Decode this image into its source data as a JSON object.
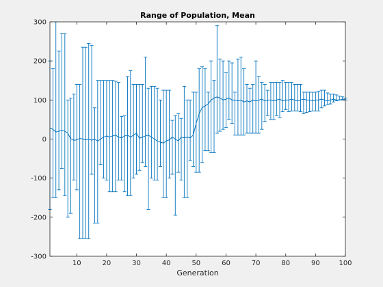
{
  "chart_data": {
    "type": "errorbar",
    "title": "Range of Population, Mean",
    "xlabel": "Generation",
    "ylabel": "",
    "xlim": [
      1,
      100
    ],
    "ylim": [
      -300,
      300
    ],
    "xticks": [
      10,
      20,
      30,
      40,
      50,
      60,
      70,
      80,
      90,
      100
    ],
    "yticks": [
      -300,
      -200,
      -100,
      0,
      100,
      200,
      300
    ],
    "grid": false,
    "line_color": "#0072bd",
    "x": [
      1,
      2,
      3,
      4,
      5,
      6,
      7,
      8,
      9,
      10,
      11,
      12,
      13,
      14,
      15,
      16,
      17,
      18,
      19,
      20,
      21,
      22,
      23,
      24,
      25,
      26,
      27,
      28,
      29,
      30,
      31,
      32,
      33,
      34,
      35,
      36,
      37,
      38,
      39,
      40,
      41,
      42,
      43,
      44,
      45,
      46,
      47,
      48,
      49,
      50,
      51,
      52,
      53,
      54,
      55,
      56,
      57,
      58,
      59,
      60,
      61,
      62,
      63,
      64,
      65,
      66,
      67,
      68,
      69,
      70,
      71,
      72,
      73,
      74,
      75,
      76,
      77,
      78,
      79,
      80,
      81,
      82,
      83,
      84,
      85,
      86,
      87,
      88,
      89,
      90,
      91,
      92,
      93,
      94,
      95,
      96,
      97,
      98,
      99,
      100
    ],
    "mean": [
      28,
      25,
      18,
      20,
      22,
      20,
      15,
      0,
      -3,
      -2,
      2,
      0,
      -2,
      0,
      -3,
      0,
      -5,
      0,
      5,
      8,
      5,
      8,
      10,
      5,
      3,
      8,
      10,
      5,
      10,
      15,
      2,
      5,
      8,
      10,
      5,
      0,
      -5,
      -8,
      -10,
      -5,
      -2,
      5,
      0,
      -5,
      5,
      3,
      5,
      3,
      10,
      40,
      65,
      80,
      85,
      90,
      100,
      105,
      108,
      105,
      100,
      102,
      105,
      100,
      100,
      98,
      100,
      95,
      98,
      95,
      100,
      98,
      100,
      102,
      98,
      100,
      100,
      98,
      100,
      102,
      98,
      100,
      100,
      102,
      100,
      98,
      100,
      102,
      100,
      100,
      98,
      100,
      100,
      102,
      100,
      98,
      100,
      102,
      100,
      100,
      102,
      102
    ],
    "upper": [
      200,
      180,
      300,
      225,
      270,
      270,
      100,
      105,
      115,
      140,
      140,
      235,
      235,
      245,
      240,
      80,
      150,
      150,
      150,
      150,
      150,
      150,
      148,
      145,
      58,
      60,
      160,
      175,
      140,
      140,
      140,
      140,
      210,
      130,
      135,
      135,
      130,
      100,
      125,
      125,
      125,
      48,
      60,
      65,
      53,
      135,
      100,
      100,
      120,
      120,
      180,
      185,
      180,
      120,
      200,
      150,
      290,
      205,
      200,
      170,
      200,
      195,
      120,
      205,
      210,
      180,
      140,
      130,
      140,
      200,
      160,
      145,
      140,
      125,
      145,
      145,
      145,
      145,
      150,
      145,
      145,
      145,
      140,
      140,
      140,
      120,
      120,
      120,
      120,
      120,
      122,
      125,
      125,
      118,
      115,
      115,
      113,
      110,
      108,
      105
    ],
    "lower": [
      -180,
      -150,
      -150,
      -130,
      -75,
      -145,
      -200,
      -190,
      -105,
      -130,
      -255,
      -255,
      -255,
      -255,
      -90,
      -215,
      -215,
      -65,
      -100,
      -105,
      -135,
      -135,
      -135,
      -105,
      -105,
      -135,
      -145,
      -145,
      -100,
      -90,
      -80,
      -60,
      -70,
      -180,
      -100,
      -105,
      -105,
      -70,
      -150,
      -150,
      -100,
      -90,
      -195,
      -85,
      -105,
      -150,
      -150,
      -55,
      -70,
      -85,
      -85,
      -60,
      -30,
      -30,
      -35,
      -35,
      15,
      20,
      25,
      30,
      50,
      40,
      10,
      10,
      10,
      10,
      15,
      15,
      15,
      15,
      15,
      25,
      45,
      60,
      50,
      50,
      60,
      55,
      70,
      75,
      70,
      72,
      72,
      72,
      70,
      65,
      68,
      70,
      72,
      72,
      72,
      80,
      85,
      88,
      90,
      95,
      98,
      100,
      100,
      100
    ]
  }
}
